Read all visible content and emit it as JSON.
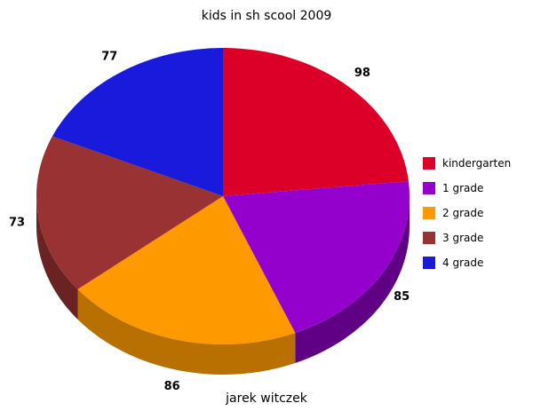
{
  "chart_data": {
    "type": "pie",
    "title": "kids in sh scool 2009",
    "subtitle": "jarek witczek",
    "categories": [
      "kindergarten",
      "1 grade",
      "2 grade",
      "3 grade",
      "4 grade"
    ],
    "values": [
      98,
      85,
      86,
      73,
      77
    ],
    "colors": [
      "#dc0028",
      "#9400cc",
      "#ff9900",
      "#993333",
      "#1a1adc"
    ],
    "side_colors": [
      "#8f0019",
      "#5f0085",
      "#b87000",
      "#6a2222",
      "#10108f"
    ],
    "legend": "right",
    "three_d": true
  }
}
